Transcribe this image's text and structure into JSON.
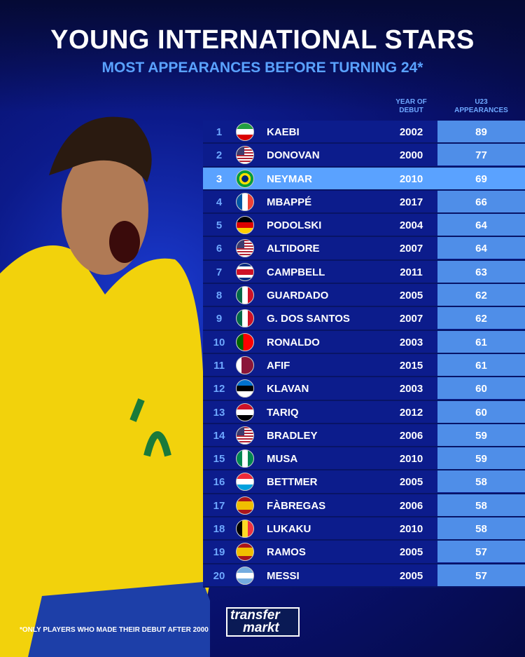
{
  "title": "YOUNG INTERNATIONAL STARS",
  "subtitle": "MOST APPEARANCES BEFORE TURNING 24*",
  "footnote": "*ONLY PLAYERS WHO MADE THEIR DEBUT AFTER 2000",
  "logo": {
    "line1": "transfer",
    "line2": "markt"
  },
  "colors": {
    "accent": "#5aa2ff",
    "row": "#0c1c8c",
    "apps_col": "#4f8ee8"
  },
  "chart_data": {
    "type": "table",
    "columns": [
      "",
      "",
      "",
      "YEAR OF DEBUT",
      "U23 APPEARANCES"
    ],
    "highlight_rank": 3,
    "rows": [
      {
        "rank": "1",
        "flag": "iran",
        "name": "KAEBI",
        "year": "2002",
        "apps": "89"
      },
      {
        "rank": "2",
        "flag": "usa",
        "name": "DONOVAN",
        "year": "2000",
        "apps": "77"
      },
      {
        "rank": "3",
        "flag": "brazil",
        "name": "NEYMAR",
        "year": "2010",
        "apps": "69"
      },
      {
        "rank": "4",
        "flag": "france",
        "name": "MBAPPÉ",
        "year": "2017",
        "apps": "66"
      },
      {
        "rank": "5",
        "flag": "germany",
        "name": "PODOLSKI",
        "year": "2004",
        "apps": "64"
      },
      {
        "rank": "6",
        "flag": "usa",
        "name": "ALTIDORE",
        "year": "2007",
        "apps": "64"
      },
      {
        "rank": "7",
        "flag": "costa-rica",
        "name": "CAMPBELL",
        "year": "2011",
        "apps": "63"
      },
      {
        "rank": "8",
        "flag": "mexico",
        "name": "GUARDADO",
        "year": "2005",
        "apps": "62"
      },
      {
        "rank": "9",
        "flag": "mexico",
        "name": "G. DOS SANTOS",
        "year": "2007",
        "apps": "62"
      },
      {
        "rank": "10",
        "flag": "portugal",
        "name": "RONALDO",
        "year": "2003",
        "apps": "61"
      },
      {
        "rank": "11",
        "flag": "qatar",
        "name": "AFIF",
        "year": "2015",
        "apps": "61"
      },
      {
        "rank": "12",
        "flag": "estonia",
        "name": "KLAVAN",
        "year": "2003",
        "apps": "60"
      },
      {
        "rank": "13",
        "flag": "iraq",
        "name": "TARIQ",
        "year": "2012",
        "apps": "60"
      },
      {
        "rank": "14",
        "flag": "usa",
        "name": "BRADLEY",
        "year": "2006",
        "apps": "59"
      },
      {
        "rank": "15",
        "flag": "nigeria",
        "name": "MUSA",
        "year": "2010",
        "apps": "59"
      },
      {
        "rank": "16",
        "flag": "luxembourg",
        "name": "BETTMER",
        "year": "2005",
        "apps": "58"
      },
      {
        "rank": "17",
        "flag": "spain",
        "name": "FÀBREGAS",
        "year": "2006",
        "apps": "58"
      },
      {
        "rank": "18",
        "flag": "belgium",
        "name": "LUKAKU",
        "year": "2010",
        "apps": "58"
      },
      {
        "rank": "19",
        "flag": "spain",
        "name": "RAMOS",
        "year": "2005",
        "apps": "57"
      },
      {
        "rank": "20",
        "flag": "argentina",
        "name": "MESSI",
        "year": "2005",
        "apps": "57"
      }
    ]
  }
}
